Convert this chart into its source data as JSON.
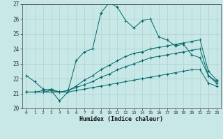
{
  "xlabel": "Humidex (Indice chaleur)",
  "bg_color": "#c8e8e8",
  "grid_color": "#b0d0d0",
  "line_color": "#006666",
  "xlim": [
    -0.5,
    23.5
  ],
  "ylim": [
    20,
    27
  ],
  "yticks": [
    20,
    21,
    22,
    23,
    24,
    25,
    26,
    27
  ],
  "xticks": [
    0,
    1,
    2,
    3,
    4,
    5,
    6,
    7,
    8,
    9,
    10,
    11,
    12,
    13,
    14,
    15,
    16,
    17,
    18,
    19,
    20,
    21,
    22,
    23
  ],
  "line1_y": [
    22.2,
    21.8,
    21.3,
    21.2,
    20.5,
    21.1,
    23.2,
    23.8,
    24.0,
    26.4,
    27.1,
    26.8,
    25.9,
    25.4,
    25.9,
    26.0,
    24.8,
    24.6,
    24.2,
    24.3,
    23.6,
    23.4,
    22.2,
    21.7
  ],
  "line2_y": [
    21.1,
    21.1,
    21.1,
    21.1,
    21.1,
    21.1,
    21.2,
    21.3,
    21.4,
    21.5,
    21.6,
    21.7,
    21.8,
    21.9,
    22.0,
    22.1,
    22.2,
    22.3,
    22.4,
    22.5,
    22.6,
    22.6,
    21.7,
    21.5
  ],
  "line3_y": [
    21.1,
    21.1,
    21.1,
    21.2,
    21.1,
    21.2,
    21.4,
    21.6,
    21.8,
    22.1,
    22.3,
    22.6,
    22.8,
    23.0,
    23.2,
    23.4,
    23.5,
    23.6,
    23.7,
    23.8,
    23.9,
    24.0,
    22.2,
    21.8
  ],
  "line4_y": [
    21.1,
    21.1,
    21.2,
    21.3,
    21.1,
    21.2,
    21.5,
    21.9,
    22.2,
    22.6,
    22.9,
    23.2,
    23.5,
    23.7,
    23.8,
    24.0,
    24.1,
    24.2,
    24.3,
    24.4,
    24.5,
    24.6,
    22.5,
    21.9
  ]
}
